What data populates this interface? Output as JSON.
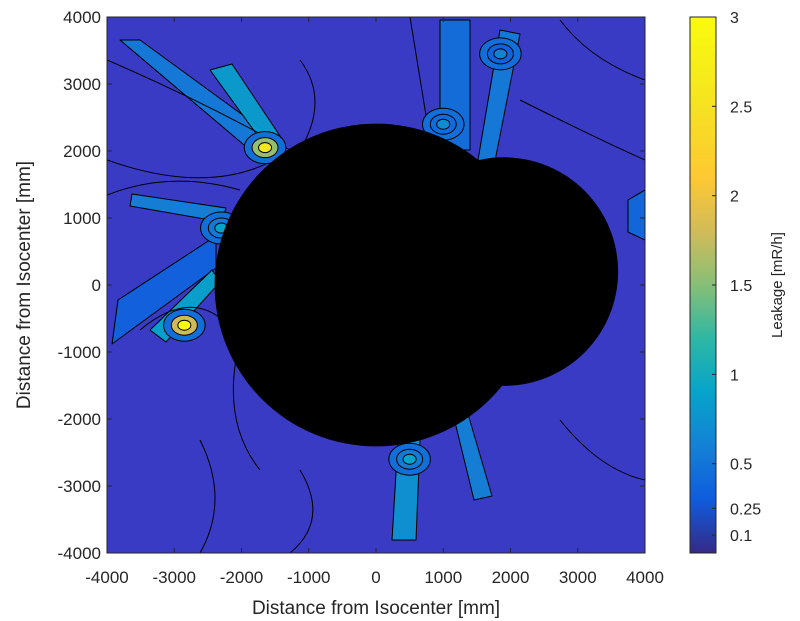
{
  "chart_data": {
    "type": "heatmap",
    "subtype": "filled-contour",
    "title": "",
    "xlabel": "Distance from Isocenter [mm]",
    "ylabel": "Distance from Isocenter [mm]",
    "xlim": [
      -4000,
      4000
    ],
    "ylim": [
      -4000,
      4000
    ],
    "x_ticks": [
      -4000,
      -3000,
      -2000,
      -1000,
      0,
      1000,
      2000,
      3000,
      4000
    ],
    "y_ticks": [
      -4000,
      -3000,
      -2000,
      -1000,
      0,
      1000,
      2000,
      3000,
      4000
    ],
    "x_tick_labels": [
      "-4000",
      "-3000",
      "-2000",
      "-1000",
      "0",
      "1000",
      "2000",
      "3000",
      "4000"
    ],
    "y_tick_labels": [
      "-4000",
      "-3000",
      "-2000",
      "-1000",
      "0",
      "1000",
      "2000",
      "3000",
      "4000"
    ],
    "grid": false,
    "colormap": "parula",
    "background_level_color": "#3a3bc4",
    "colorbar": {
      "label": "Leakage [mR/h]",
      "placement": "right",
      "range": [
        0,
        3
      ],
      "ticks": [
        0.1,
        0.25,
        0.5,
        1,
        1.5,
        2,
        2.5,
        3
      ],
      "tick_labels": [
        "0.1",
        "0.25",
        "0.5",
        "1",
        "1.5",
        "2",
        "2.5",
        "3"
      ]
    },
    "masked_regions": [
      {
        "shape": "circle",
        "cx": 0,
        "cy": 0,
        "r": 2400,
        "color": "#000000"
      },
      {
        "shape": "circle",
        "cx": 1900,
        "cy": 200,
        "r": 1700,
        "color": "#000000"
      }
    ],
    "hotspots": [
      {
        "x": -2850,
        "y": -600,
        "level": 3.0
      },
      {
        "x": -1650,
        "y": 2050,
        "level": 2.6
      },
      {
        "x": -2300,
        "y": 850,
        "level": 0.9
      },
      {
        "x": 500,
        "y": -2600,
        "level": 0.9
      },
      {
        "x": 1000,
        "y": 2400,
        "level": 0.7
      },
      {
        "x": 1850,
        "y": 3450,
        "level": 0.6
      }
    ]
  }
}
